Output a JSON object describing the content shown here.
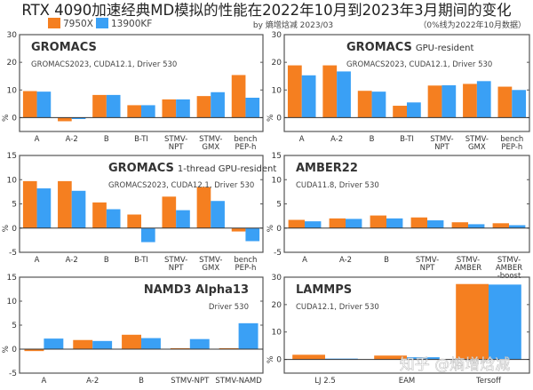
{
  "header": {
    "title": "RTX 4090加速经典MD模拟的性能在2022年10月到2023年3月期间的变化",
    "byline": "by 熵增焓减 2023/03",
    "note": "（0%线为2022年10月数据）",
    "watermark": "知乎 @熵增焓减"
  },
  "colors": {
    "7950X": "#f57f20",
    "13900KF": "#3aa0f5"
  },
  "chart_data": [
    {
      "type": "bar",
      "title": "GROMACS",
      "title_suffix": "",
      "subtitle": "GROMACS2023, CUDA12.1, Driver 530",
      "ylabel": "%",
      "ylim": [
        -5,
        30
      ],
      "yticks": [
        0,
        10,
        20,
        30
      ],
      "categories": [
        "A",
        "A-2",
        "B",
        "B-TI",
        "STMV-\nNPT",
        "STMV-\nGMX",
        "bench\nPEP-h"
      ],
      "series": [
        {
          "name": "7950X",
          "values": [
            9.6,
            -1.3,
            8.2,
            4.5,
            6.6,
            7.8,
            15.4
          ]
        },
        {
          "name": "13900KF",
          "values": [
            9.4,
            -0.5,
            8.2,
            4.5,
            6.6,
            9.2,
            7.2
          ]
        }
      ]
    },
    {
      "type": "bar",
      "title": "GROMACS",
      "title_suffix": "GPU-resident",
      "subtitle": "GROMACS2023, CUDA12.1, Driver 530",
      "ylabel": "",
      "ylim": [
        -5,
        30
      ],
      "yticks": [
        0,
        10,
        20,
        30
      ],
      "categories": [
        "A",
        "A-2",
        "B",
        "B-TI",
        "STMV-\nNPT",
        "STMV-\nGMX",
        "bench\nPEP-h"
      ],
      "series": [
        {
          "name": "7950X",
          "values": [
            18.9,
            18.9,
            9.7,
            4.3,
            11.6,
            12.2,
            11.2
          ]
        },
        {
          "name": "13900KF",
          "values": [
            15.3,
            16.7,
            9.4,
            5.5,
            11.7,
            13.2,
            10.0
          ]
        }
      ]
    },
    {
      "type": "bar",
      "title": "GROMACS",
      "title_suffix": "1-thread GPU-resident",
      "subtitle": "GROMACS2023, CUDA12.1, Driver 530",
      "ylabel": "%",
      "ylim": [
        -5,
        15
      ],
      "yticks": [
        -5,
        0,
        5,
        10,
        15
      ],
      "categories": [
        "A",
        "A-2",
        "B",
        "B-TI",
        "STMV-\nNPT",
        "STMV-\nGMX",
        "bench\nPEP-h"
      ],
      "series": [
        {
          "name": "7950X",
          "values": [
            9.7,
            9.7,
            5.3,
            2.8,
            6.5,
            8.5,
            -0.7
          ]
        },
        {
          "name": "13900KF",
          "values": [
            8.2,
            7.7,
            3.9,
            -2.9,
            3.7,
            5.6,
            -2.7
          ]
        }
      ]
    },
    {
      "type": "bar",
      "title": "AMBER22",
      "title_suffix": "",
      "subtitle": "CUDA11.8, Driver 530",
      "ylabel": "%",
      "ylim": [
        -5,
        15
      ],
      "yticks": [
        -5,
        0,
        5,
        10,
        15
      ],
      "categories": [
        "A",
        "A-2",
        "B",
        "STMV-\nNPT",
        "STMV-\nAMBER",
        "STMV-\nAMBER\n-boost"
      ],
      "series": [
        {
          "name": "7950X",
          "values": [
            1.7,
            2.0,
            2.6,
            2.2,
            1.2,
            1.0
          ]
        },
        {
          "name": "13900KF",
          "values": [
            1.4,
            1.9,
            2.0,
            1.6,
            0.8,
            0.6
          ]
        }
      ]
    },
    {
      "type": "bar",
      "title": "NAMD3 Alpha13",
      "title_suffix": "",
      "subtitle": "Driver 530",
      "ylabel": "%",
      "ylim": [
        -5,
        15
      ],
      "yticks": [
        -5,
        0,
        5,
        10,
        15
      ],
      "categories": [
        "A",
        "A-2",
        "B",
        "STMV-NPT",
        "STMV-NAMD"
      ],
      "series": [
        {
          "name": "7950X",
          "values": [
            -0.4,
            1.9,
            3.0,
            0.2,
            0.2
          ]
        },
        {
          "name": "13900KF",
          "values": [
            2.2,
            1.7,
            2.3,
            2.1,
            5.4
          ]
        }
      ]
    },
    {
      "type": "bar",
      "title": "LAMMPS",
      "title_suffix": "",
      "subtitle": "CUDA12.1, Driver 530",
      "ylabel": "%",
      "ylim": [
        -5,
        30
      ],
      "yticks": [
        0,
        10,
        20,
        30
      ],
      "categories": [
        "LJ 2.5",
        "EAM",
        "Tersoff"
      ],
      "series": [
        {
          "name": "7950X",
          "values": [
            1.7,
            1.4,
            27.5
          ]
        },
        {
          "name": "13900KF",
          "values": [
            0.3,
            0.8,
            27.3
          ]
        }
      ]
    }
  ]
}
